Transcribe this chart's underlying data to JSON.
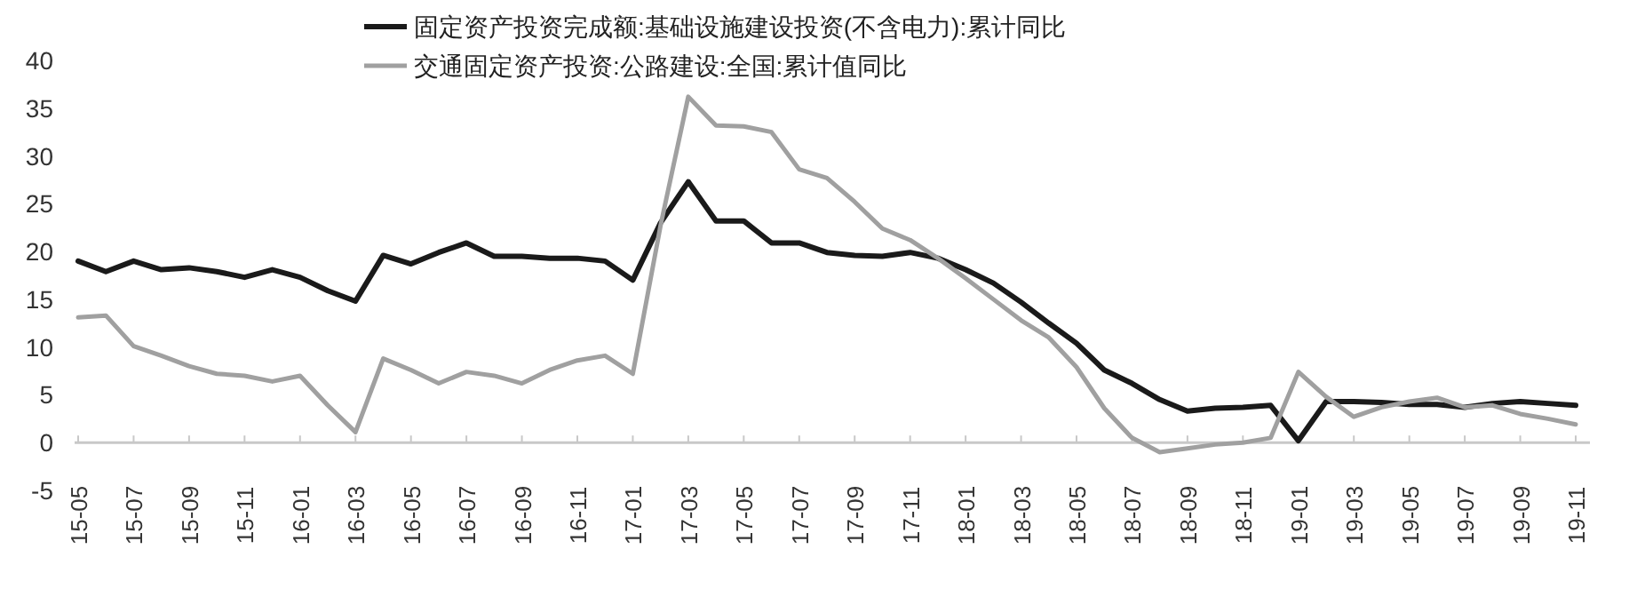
{
  "chart_data": {
    "type": "line",
    "categories": [
      "15-05",
      null,
      "15-07",
      null,
      "15-09",
      null,
      "15-11",
      null,
      "16-01",
      null,
      "16-03",
      null,
      "16-05",
      null,
      "16-07",
      null,
      "16-09",
      null,
      "16-11",
      null,
      "17-01",
      null,
      "17-03",
      null,
      "17-05",
      null,
      "17-07",
      null,
      "17-09",
      null,
      "17-11",
      null,
      "18-01",
      null,
      "18-03",
      null,
      "18-05",
      null,
      "18-07",
      null,
      "18-09",
      null,
      "18-11",
      null,
      "19-01",
      null,
      "19-03",
      null,
      "19-05",
      null,
      "19-07",
      null,
      "19-09",
      null,
      "19-11"
    ],
    "series": [
      {
        "name": "固定资产投资完成额:基础设施建设投资(不含电力):累计同比",
        "color": "#1a1a1a",
        "values": [
          19.0,
          17.9,
          19.0,
          18.1,
          18.3,
          17.9,
          17.3,
          18.1,
          17.3,
          15.9,
          14.8,
          19.6,
          18.7,
          19.9,
          20.9,
          19.5,
          19.5,
          19.3,
          19.3,
          19.0,
          17.0,
          23.0,
          27.3,
          23.2,
          23.2,
          20.9,
          20.9,
          19.9,
          19.6,
          19.5,
          19.9,
          19.3,
          18.1,
          16.7,
          14.7,
          12.5,
          10.4,
          7.6,
          6.2,
          4.5,
          3.3,
          3.6,
          3.7,
          3.9,
          0.2,
          4.3,
          4.3,
          4.2,
          4.0,
          4.0,
          3.7,
          4.1,
          4.3,
          4.1,
          3.9
        ]
      },
      {
        "name": "交通固定资产投资:公路建设:全国:累计值同比",
        "color": "#a0a0a0",
        "values": [
          13.1,
          13.3,
          10.1,
          9.1,
          8.0,
          7.2,
          7.0,
          6.4,
          7.0,
          3.9,
          1.1,
          8.8,
          7.6,
          6.2,
          7.4,
          7.0,
          6.2,
          7.6,
          8.6,
          9.1,
          7.2,
          22.7,
          36.2,
          33.2,
          33.1,
          32.5,
          28.6,
          27.7,
          25.2,
          22.4,
          21.2,
          19.3,
          17.2,
          15.0,
          12.8,
          11.0,
          7.9,
          3.6,
          0.5,
          -1.0,
          -0.6,
          -0.2,
          0.0,
          0.5,
          7.4,
          4.8,
          2.7,
          3.7,
          4.3,
          4.7,
          3.7,
          3.9,
          3.0,
          2.5,
          1.9
        ]
      }
    ],
    "ylim": [
      -5,
      40
    ],
    "yticks": [
      -5,
      0,
      5,
      10,
      15,
      20,
      25,
      30,
      35,
      40
    ],
    "grid": false,
    "legend": "top",
    "marker": "none",
    "line_style": "solid"
  }
}
